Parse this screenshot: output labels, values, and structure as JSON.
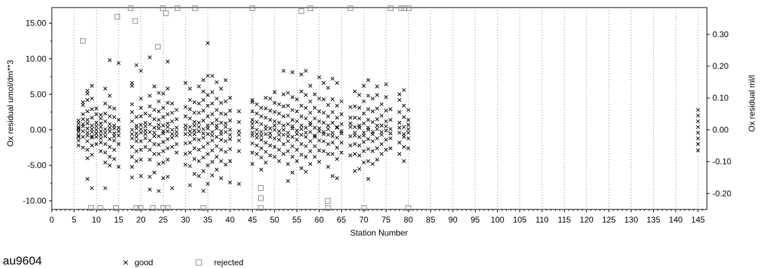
{
  "chart_data": {
    "type": "scatter",
    "title": "au9604",
    "xlabel": "Station Number",
    "ylabel_left": "Ox residual umol/dm**3",
    "ylabel_right": "Ox residual ml/l",
    "xlim": [
      0,
      147
    ],
    "ylim_left": [
      -11.2,
      17.2
    ],
    "ylim_right": [
      -0.25,
      0.384
    ],
    "x_ticks": [
      "0",
      "5",
      "10",
      "15",
      "20",
      "25",
      "30",
      "35",
      "40",
      "45",
      "50",
      "55",
      "60",
      "65",
      "70",
      "75",
      "80",
      "85",
      "90",
      "95",
      "100",
      "105",
      "110",
      "115",
      "120",
      "125",
      "130",
      "135",
      "140",
      "145"
    ],
    "y_ticks_left": [
      "15.00",
      "10.00",
      "5.00",
      "0.00",
      "-5.00",
      "-10.00"
    ],
    "y_ticks_right": [
      "0.30",
      "0.20",
      "0.10",
      "0.00",
      "-0.10",
      "-0.20"
    ],
    "grid": "vertical dotted lines at each x tick",
    "legend": [
      {
        "name": "good",
        "marker": "x"
      },
      {
        "name": "rejected",
        "marker": "open-square"
      }
    ],
    "good_columns": [
      {
        "x": 6,
        "values": [
          -2.2,
          -1.5,
          -0.8,
          -0.3,
          0.0,
          0.4,
          0.9,
          1.3,
          -1.0,
          0.2
        ]
      },
      {
        "x": 7,
        "values": [
          3.5,
          3.9,
          -2.5,
          -1.0,
          0.5,
          1.5,
          -0.2,
          2.2,
          0.8
        ]
      },
      {
        "x": 8,
        "values": [
          -6.9,
          -4.0,
          -2.8,
          -1.6,
          -0.8,
          0.2,
          1.4,
          2.6,
          4.2,
          5.1,
          5.5,
          -0.4,
          0.9
        ]
      },
      {
        "x": 9,
        "values": [
          -8.2,
          -3.5,
          -2.2,
          -1.1,
          -0.3,
          0.6,
          1.7,
          2.9,
          4.4,
          6.2,
          0.1,
          -0.9
        ]
      },
      {
        "x": 10,
        "values": [
          -2.0,
          -1.0,
          0.0,
          1.0,
          2.2,
          3.0,
          -0.5,
          0.5
        ]
      },
      {
        "x": 11,
        "values": [
          -3.0,
          -1.8,
          -0.7,
          0.4,
          1.6,
          2.1,
          -0.2,
          0.9,
          -1.2
        ]
      },
      {
        "x": 12,
        "values": [
          -8.2,
          -4.6,
          -3.2,
          -2.0,
          -0.9,
          0.1,
          1.2,
          2.3,
          3.7,
          5.8,
          -0.4
        ]
      },
      {
        "x": 13,
        "values": [
          -5.0,
          -3.8,
          -2.4,
          -1.3,
          -0.2,
          0.8,
          1.9,
          3.2,
          4.8,
          9.8,
          0.3
        ]
      },
      {
        "x": 14,
        "values": [
          -4.1,
          -2.8,
          -1.5,
          -0.5,
          0.6,
          1.8,
          3.0,
          -0.9,
          0.2
        ]
      },
      {
        "x": 15,
        "values": [
          -5.2,
          -2.0,
          -0.8,
          0.3,
          1.4,
          9.4,
          -0.2
        ]
      },
      {
        "x": 18,
        "values": [
          -6.7,
          -5.2,
          -3.8,
          -2.4,
          -1.2,
          0.0,
          1.2,
          2.5,
          3.6,
          6.2,
          6.6,
          -0.6
        ]
      },
      {
        "x": 19,
        "values": [
          -4.4,
          -3.0,
          -1.6,
          -0.5,
          0.6,
          1.8,
          9.1,
          0.2,
          -1.0
        ]
      },
      {
        "x": 20,
        "values": [
          -6.5,
          -4.2,
          -2.8,
          -1.6,
          -0.4,
          0.7,
          1.9,
          3.1,
          4.4,
          8.3,
          0.1
        ]
      },
      {
        "x": 21,
        "values": [
          -2.4,
          -1.2,
          -0.1,
          1.0,
          2.3,
          -0.6,
          0.5
        ]
      },
      {
        "x": 22,
        "values": [
          -8.4,
          -6.6,
          -4.2,
          -2.8,
          -1.5,
          -0.3,
          0.8,
          2.0,
          3.3,
          4.8,
          10.2
        ]
      },
      {
        "x": 23,
        "values": [
          -6.0,
          -3.4,
          -2.0,
          -0.9,
          0.3,
          1.5,
          2.8,
          6.1,
          -0.4
        ]
      },
      {
        "x": 24,
        "values": [
          -8.6,
          -4.8,
          -3.4,
          -2.1,
          -0.9,
          0.2,
          1.4,
          2.6,
          4.0,
          5.2,
          0.7
        ]
      },
      {
        "x": 25,
        "values": [
          -6.8,
          -4.6,
          -3.0,
          -1.7,
          -0.5,
          0.6,
          1.8,
          3.1,
          5.1,
          -0.2
        ]
      },
      {
        "x": 26,
        "values": [
          -6.6,
          -4.2,
          -2.6,
          -1.3,
          -0.2,
          0.9,
          2.2,
          3.8,
          5.8,
          9.6,
          0.4
        ]
      },
      {
        "x": 27,
        "values": [
          -8.2,
          -2.4,
          -1.1,
          0.0,
          1.2,
          2.4,
          3.7,
          -0.6
        ]
      },
      {
        "x": 28,
        "values": [
          -3.2,
          -2.0,
          -0.8,
          0.3,
          1.5,
          2.8,
          -0.3
        ]
      },
      {
        "x": 30,
        "values": [
          -4.9,
          -3.4,
          -1.9,
          -0.6,
          0.6,
          1.9,
          3.2,
          6.6,
          0.1
        ]
      },
      {
        "x": 31,
        "values": [
          -7.8,
          -5.1,
          -3.2,
          -1.8,
          -0.7,
          0.4,
          1.6,
          2.9,
          4.2,
          5.8,
          -0.2
        ]
      },
      {
        "x": 32,
        "values": [
          -6.2,
          -4.1,
          -2.6,
          -1.3,
          -0.1,
          1.1,
          2.4,
          3.9,
          -0.6,
          0.6
        ]
      },
      {
        "x": 33,
        "values": [
          -6.5,
          -4.4,
          -2.8,
          -1.4,
          -0.2,
          1.0,
          2.4,
          3.7,
          6.1,
          0.4
        ]
      },
      {
        "x": 34,
        "values": [
          -8.6,
          -5.8,
          -3.9,
          -2.4,
          -1.1,
          0.1,
          1.3,
          2.7,
          4.2,
          5.4,
          7.0,
          -0.5
        ]
      },
      {
        "x": 35,
        "values": [
          -7.6,
          -5.0,
          -3.4,
          -1.9,
          -0.6,
          0.6,
          1.9,
          3.4,
          4.9,
          7.6,
          12.2,
          0.2
        ]
      },
      {
        "x": 36,
        "values": [
          -6.4,
          -4.5,
          -2.9,
          -1.5,
          -0.3,
          0.9,
          2.2,
          3.7,
          5.3,
          7.6,
          -0.8
        ]
      },
      {
        "x": 37,
        "values": [
          -5.6,
          -3.8,
          -2.3,
          -1.0,
          0.2,
          1.4,
          2.8,
          4.4,
          6.7,
          0.6
        ]
      },
      {
        "x": 38,
        "values": [
          -6.8,
          -4.4,
          -2.8,
          -1.4,
          -0.2,
          1.0,
          2.3,
          3.8,
          5.8,
          -0.6
        ]
      },
      {
        "x": 39,
        "values": [
          -4.9,
          -3.1,
          -1.6,
          -0.3,
          0.9,
          2.2,
          4.0,
          7.0,
          0.4
        ]
      },
      {
        "x": 40,
        "values": [
          -7.4,
          -4.4,
          -2.7,
          -1.3,
          0.0,
          1.3,
          2.7,
          4.5,
          -0.7
        ]
      },
      {
        "x": 42,
        "values": [
          -7.6,
          -3.0,
          -1.5,
          -0.2,
          1.1,
          2.6,
          -0.7
        ]
      },
      {
        "x": 45,
        "values": [
          -4.8,
          -3.2,
          -1.9,
          -0.8,
          0.3,
          1.4,
          2.6,
          3.9,
          4.2,
          -0.4,
          0.9
        ]
      },
      {
        "x": 46,
        "values": [
          -3.4,
          -2.2,
          -1.1,
          0.0,
          1.1,
          2.3,
          3.6,
          -0.6
        ]
      },
      {
        "x": 47,
        "values": [
          -5.6,
          -3.9,
          -2.6,
          -1.4,
          -0.3,
          0.8,
          1.9,
          3.1,
          -0.8
        ]
      },
      {
        "x": 48,
        "values": [
          -4.6,
          -3.1,
          -1.8,
          -0.6,
          0.5,
          1.7,
          3.0,
          4.5,
          0.1
        ]
      },
      {
        "x": 49,
        "values": [
          -3.6,
          -2.2,
          -1.0,
          0.2,
          1.4,
          2.7,
          4.4,
          -0.5
        ]
      },
      {
        "x": 50,
        "values": [
          -3.8,
          -2.4,
          -1.2,
          0.0,
          1.2,
          2.5,
          3.8,
          5.3,
          0.6
        ]
      },
      {
        "x": 51,
        "values": [
          -4.4,
          -2.8,
          -1.4,
          -0.2,
          1.0,
          2.3,
          3.6,
          -0.7
        ]
      },
      {
        "x": 52,
        "values": [
          -3.4,
          -2.0,
          -0.7,
          0.6,
          1.9,
          3.3,
          5.0,
          8.3,
          0.0
        ]
      },
      {
        "x": 53,
        "values": [
          -7.2,
          -4.8,
          -3.0,
          -1.6,
          -0.4,
          0.8,
          2.0,
          3.4,
          5.2,
          -0.9
        ]
      },
      {
        "x": 54,
        "values": [
          -6.0,
          -3.8,
          -2.3,
          -1.0,
          0.2,
          1.4,
          2.8,
          4.6,
          8.1,
          0.5
        ]
      },
      {
        "x": 55,
        "values": [
          -4.4,
          -2.8,
          -1.4,
          -0.1,
          1.2,
          2.6,
          4.3,
          -0.6
        ]
      },
      {
        "x": 56,
        "values": [
          -5.4,
          -3.5,
          -2.0,
          -0.7,
          0.6,
          1.9,
          3.4,
          5.4,
          7.8,
          0.1
        ]
      },
      {
        "x": 57,
        "values": [
          -5.9,
          -3.8,
          -2.3,
          -1.0,
          0.3,
          1.6,
          3.1,
          4.9,
          8.3,
          -0.4
        ]
      },
      {
        "x": 58,
        "values": [
          -4.8,
          -3.0,
          -1.6,
          -0.3,
          1.0,
          2.4,
          4.0,
          6.2,
          0.7
        ]
      },
      {
        "x": 59,
        "values": [
          -3.8,
          -2.3,
          -1.0,
          0.3,
          1.6,
          3.1,
          5.0,
          -0.8
        ]
      },
      {
        "x": 60,
        "values": [
          -4.5,
          -2.9,
          -1.5,
          -0.2,
          1.2,
          2.6,
          4.4,
          7.4,
          0.2
        ]
      },
      {
        "x": 61,
        "values": [
          -3.0,
          -1.6,
          -0.3,
          1.0,
          2.4,
          4.3,
          6.6,
          -0.6
        ]
      },
      {
        "x": 62,
        "values": [
          -5.2,
          -3.4,
          -2.0,
          -0.7,
          0.6,
          1.9,
          3.5,
          5.9,
          0.1
        ]
      },
      {
        "x": 63,
        "values": [
          -6.5,
          -3.4,
          -1.8,
          -0.4,
          1.0,
          2.5,
          4.3,
          7.2,
          -0.9
        ]
      },
      {
        "x": 64,
        "values": [
          -6.8,
          -4.1,
          -2.5,
          -1.1,
          0.3,
          1.7,
          3.4,
          6.6,
          0.4
        ]
      },
      {
        "x": 65,
        "values": [
          -3.2,
          -1.8,
          -0.5,
          0.8,
          2.2,
          4.0,
          -0.2
        ]
      },
      {
        "x": 67,
        "values": [
          -3.6,
          -2.2,
          -0.9,
          0.4,
          1.7,
          3.2,
          0.9
        ]
      },
      {
        "x": 68,
        "values": [
          -5.8,
          -3.4,
          -2.0,
          -0.8,
          0.4,
          1.7,
          3.3,
          5.4,
          -0.4
        ]
      },
      {
        "x": 69,
        "values": [
          -5.5,
          -3.6,
          -2.2,
          -1.0,
          0.3,
          1.6,
          3.1,
          4.9,
          0.6
        ]
      },
      {
        "x": 70,
        "values": [
          -4.6,
          -3.0,
          -1.7,
          -0.4,
          0.9,
          2.3,
          4.0,
          6.2,
          -0.8
        ]
      },
      {
        "x": 71,
        "values": [
          -6.9,
          -4.4,
          -2.7,
          -1.3,
          0.0,
          1.4,
          2.9,
          4.8,
          7.0,
          0.3
        ]
      },
      {
        "x": 72,
        "values": [
          -4.8,
          -3.0,
          -1.6,
          -0.3,
          1.1,
          2.6,
          4.4,
          -0.6
        ]
      },
      {
        "x": 73,
        "values": [
          -4.2,
          -2.6,
          -1.2,
          0.1,
          1.5,
          3.0,
          4.9,
          6.1,
          0.6
        ]
      },
      {
        "x": 74,
        "values": [
          -3.4,
          -2.0,
          -0.7,
          0.6,
          2.0,
          3.6,
          -0.3
        ]
      },
      {
        "x": 75,
        "values": [
          -2.8,
          -1.4,
          -0.1,
          1.2,
          2.7,
          4.6,
          6.4,
          0.5
        ]
      },
      {
        "x": 76,
        "values": [
          -2.6,
          -1.2,
          0.1,
          1.4,
          2.9,
          -0.5
        ]
      },
      {
        "x": 78,
        "values": [
          -3.4,
          -1.8,
          -0.4,
          1.0,
          2.5,
          4.2,
          5.0,
          0.3
        ]
      },
      {
        "x": 79,
        "values": [
          -4.4,
          -2.4,
          -1.0,
          0.4,
          1.8,
          3.4,
          5.6,
          -0.6
        ]
      },
      {
        "x": 80,
        "values": [
          -2.6,
          -1.2,
          0.1,
          1.4,
          2.8,
          -0.4,
          0.7
        ]
      },
      {
        "x": 145,
        "values": [
          -2.9,
          -2.0,
          -1.2,
          -0.4,
          0.4,
          1.2,
          2.0,
          2.8
        ]
      }
    ],
    "rejected_points": [
      [
        7,
        12.5
      ],
      [
        8.8,
        -11.0
      ],
      [
        10.9,
        -11.0
      ],
      [
        14.7,
        15.9
      ],
      [
        14.4,
        -11.0
      ],
      [
        17.7,
        17.1
      ],
      [
        18.7,
        15.3
      ],
      [
        19.0,
        -11.0
      ],
      [
        19.9,
        -11.0
      ],
      [
        22.7,
        -11.0
      ],
      [
        23.8,
        11.7
      ],
      [
        24.9,
        17.1
      ],
      [
        25.6,
        16.4
      ],
      [
        25.0,
        -11.0
      ],
      [
        26.0,
        -11.0
      ],
      [
        28.2,
        17.1
      ],
      [
        32.1,
        17.1
      ],
      [
        34.0,
        -11.0
      ],
      [
        45.0,
        17.1
      ],
      [
        46.9,
        -8.2
      ],
      [
        46.9,
        -9.6
      ],
      [
        46.9,
        -11.0
      ],
      [
        56.0,
        16.7
      ],
      [
        58.0,
        17.1
      ],
      [
        61.9,
        -10.0
      ],
      [
        62.0,
        -11.0
      ],
      [
        67.0,
        17.1
      ],
      [
        70.1,
        -11.0
      ],
      [
        76.0,
        17.1
      ],
      [
        78.4,
        17.1
      ],
      [
        79.1,
        17.1
      ],
      [
        80.1,
        17.1
      ],
      [
        80.0,
        -11.0
      ]
    ]
  }
}
